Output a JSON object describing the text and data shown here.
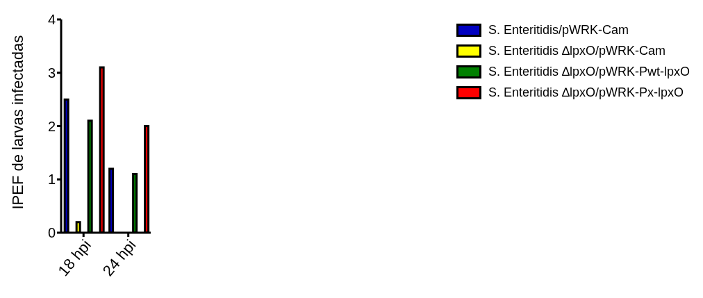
{
  "chart_data": {
    "type": "bar",
    "ylabel": "IPEF de larvas infectadas",
    "categories": [
      "18 hpi",
      "24 hpi"
    ],
    "series": [
      {
        "name": "S. Enteritidis/pWRK-Cam",
        "color": "#0000c0",
        "values": [
          2.5,
          1.2
        ]
      },
      {
        "name": "S. Enteritidis ∆lpxO/pWRK-Cam",
        "color": "#ffff00",
        "values": [
          0.2,
          0
        ]
      },
      {
        "name": "S. Enteritidis ∆lpxO/pWRK-Pwt-lpxO",
        "color": "#008000",
        "values": [
          2.1,
          1.1
        ]
      },
      {
        "name": "S. Enteritidis ∆lpxO/pWRK-Px-lpxO",
        "color": "#ff0000",
        "values": [
          3.1,
          2.0
        ]
      }
    ],
    "ylim": [
      0,
      4
    ],
    "yticks": [
      0,
      1,
      2,
      3,
      4
    ],
    "grid": false,
    "legend": "top right"
  }
}
